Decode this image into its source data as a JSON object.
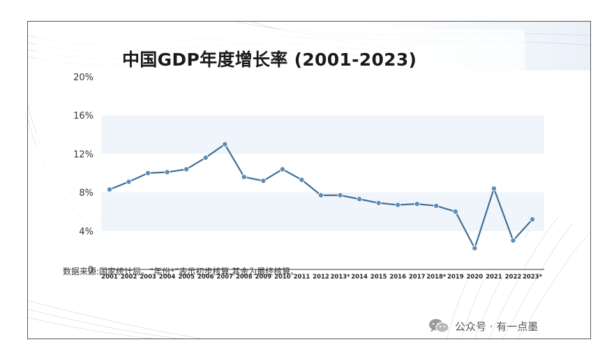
{
  "title": "中国GDP年度增长率 (2001-2023)",
  "source_note": "数据来源:国家统计局。“年份*”表示初步核算,其余为最终核算。",
  "watermark": {
    "text": "公众号 · 有一点墨",
    "icon": "wechat-icon"
  },
  "colors": {
    "line": "#3f6f96",
    "marker": "#5b8db8",
    "band": "#eef4fb",
    "axis": "#333333"
  },
  "chart_data": {
    "type": "line",
    "title": "中国GDP年度增长率 (2001-2023)",
    "xlabel": "",
    "ylabel": "",
    "ylim": [
      0,
      20
    ],
    "yticks": [
      "0",
      "4%",
      "8%",
      "12%",
      "16%",
      "20%"
    ],
    "yticks_values": [
      0,
      4,
      8,
      12,
      16,
      20
    ],
    "grid": "horizontal alternating bands",
    "categories": [
      "2001",
      "2002",
      "2003",
      "2004",
      "2005",
      "2006",
      "2007",
      "2008",
      "2009",
      "2010",
      "2011",
      "2012",
      "2013*",
      "2014",
      "2015",
      "2016",
      "2017",
      "2018*",
      "2019",
      "2020",
      "2021",
      "2022",
      "2023*"
    ],
    "series": [
      {
        "values": [
          8.3,
          9.1,
          10.0,
          10.1,
          10.4,
          11.6,
          13.0,
          9.6,
          9.2,
          10.4,
          9.3,
          7.7,
          7.7,
          7.3,
          6.9,
          6.7,
          6.8,
          6.6,
          6.0,
          2.2,
          8.4,
          3.0,
          5.2
        ]
      }
    ]
  }
}
